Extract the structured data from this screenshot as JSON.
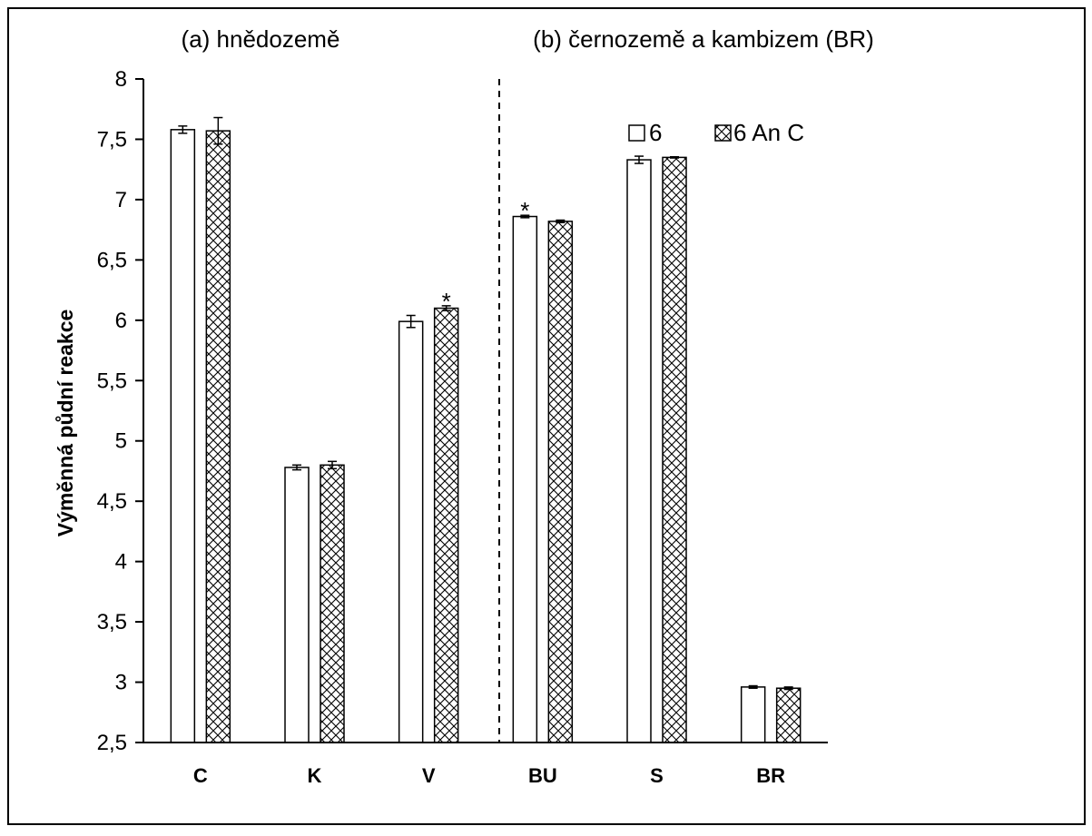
{
  "chart_data": {
    "type": "bar",
    "ylabel": "Výměnná půdní reakce",
    "xlabel": "",
    "ylim": [
      2.5,
      8
    ],
    "yticks": [
      "2,5",
      "3",
      "3,5",
      "4",
      "4,5",
      "5",
      "5,5",
      "6",
      "6,5",
      "7",
      "7,5",
      "8"
    ],
    "ytick_values": [
      2.5,
      3,
      3.5,
      4,
      4.5,
      5,
      5.5,
      6,
      6.5,
      7,
      7.5,
      8
    ],
    "categories": [
      "C",
      "K",
      "V",
      "BU",
      "S",
      "BR"
    ],
    "groups": [
      {
        "title": "(a) hnědozemě",
        "categories": [
          "C",
          "K",
          "V"
        ]
      },
      {
        "title": "(b) černozemě a kambizem (BR)",
        "categories": [
          "BU",
          "S",
          "BR"
        ]
      }
    ],
    "series": [
      {
        "name": "6",
        "pattern": "none",
        "values": [
          7.58,
          4.78,
          5.99,
          6.86,
          7.33,
          2.96
        ],
        "errors": [
          0.03,
          0.02,
          0.05,
          0.01,
          0.03,
          0.01
        ],
        "significance": [
          "",
          "",
          "",
          "*",
          "",
          ""
        ]
      },
      {
        "name": "6 An C",
        "pattern": "crosshatch",
        "values": [
          7.57,
          4.8,
          6.1,
          6.82,
          7.35,
          2.95
        ],
        "errors": [
          0.11,
          0.03,
          0.02,
          0.01,
          0.005,
          0.01
        ],
        "significance": [
          "",
          "",
          "*",
          "",
          "",
          ""
        ]
      }
    ],
    "legend_position": "top-right",
    "grid": false,
    "group_separator": "dashed vertical line between V and BU",
    "colors": {
      "bar_outline": "#000000",
      "bar_fill": "#ffffff",
      "hatch": "#000000"
    }
  }
}
